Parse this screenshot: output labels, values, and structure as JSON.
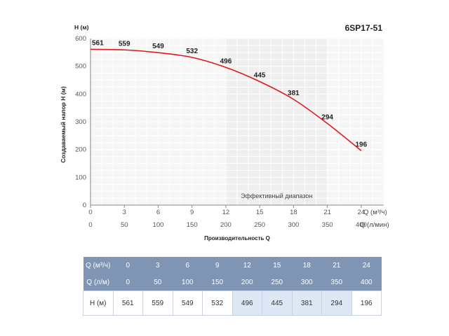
{
  "chart_data": {
    "type": "line",
    "model": "6SP17-51",
    "ylabel": "Создаваемый напор Н (м)",
    "y_axis_title_top": "Н (м)",
    "xlabel": "Производительность Q",
    "x_unit_primary": "Q (м³/ч)",
    "x_unit_secondary": "Q (л/мин)",
    "ylim": [
      0,
      600
    ],
    "yticks": [
      "0",
      "100",
      "200",
      "300",
      "400",
      "500",
      "600"
    ],
    "xlim": [
      0,
      26
    ],
    "x_m3h": [
      0,
      3,
      6,
      9,
      12,
      15,
      18,
      21,
      24
    ],
    "x_lmin": [
      0,
      50,
      100,
      150,
      200,
      250,
      300,
      350,
      400
    ],
    "head": [
      561,
      559,
      549,
      532,
      496,
      445,
      381,
      294,
      196
    ],
    "efficient_range": {
      "from_m3h": 12,
      "to_m3h": 21,
      "label": "Эффективный диапазон"
    },
    "line_color": "#e0161c",
    "grid": true
  },
  "table": {
    "rows": [
      {
        "label": "Q (м³/ч)",
        "values": [
          "0",
          "3",
          "6",
          "9",
          "12",
          "15",
          "18",
          "21",
          "24"
        ]
      },
      {
        "label": "Q (л/м)",
        "values": [
          "0",
          "50",
          "100",
          "150",
          "200",
          "250",
          "300",
          "350",
          "400"
        ]
      },
      {
        "label": "Н (м)",
        "values": [
          "561",
          "559",
          "549",
          "532",
          "496",
          "445",
          "381",
          "294",
          "196"
        ]
      }
    ],
    "highlight_indices": [
      4,
      5,
      6,
      7
    ]
  },
  "colors": {
    "header_bg": "#7f95b3",
    "highlight_bg": "#dde7f5",
    "curve": "#e0161c",
    "efficient_band": "#efefef"
  }
}
